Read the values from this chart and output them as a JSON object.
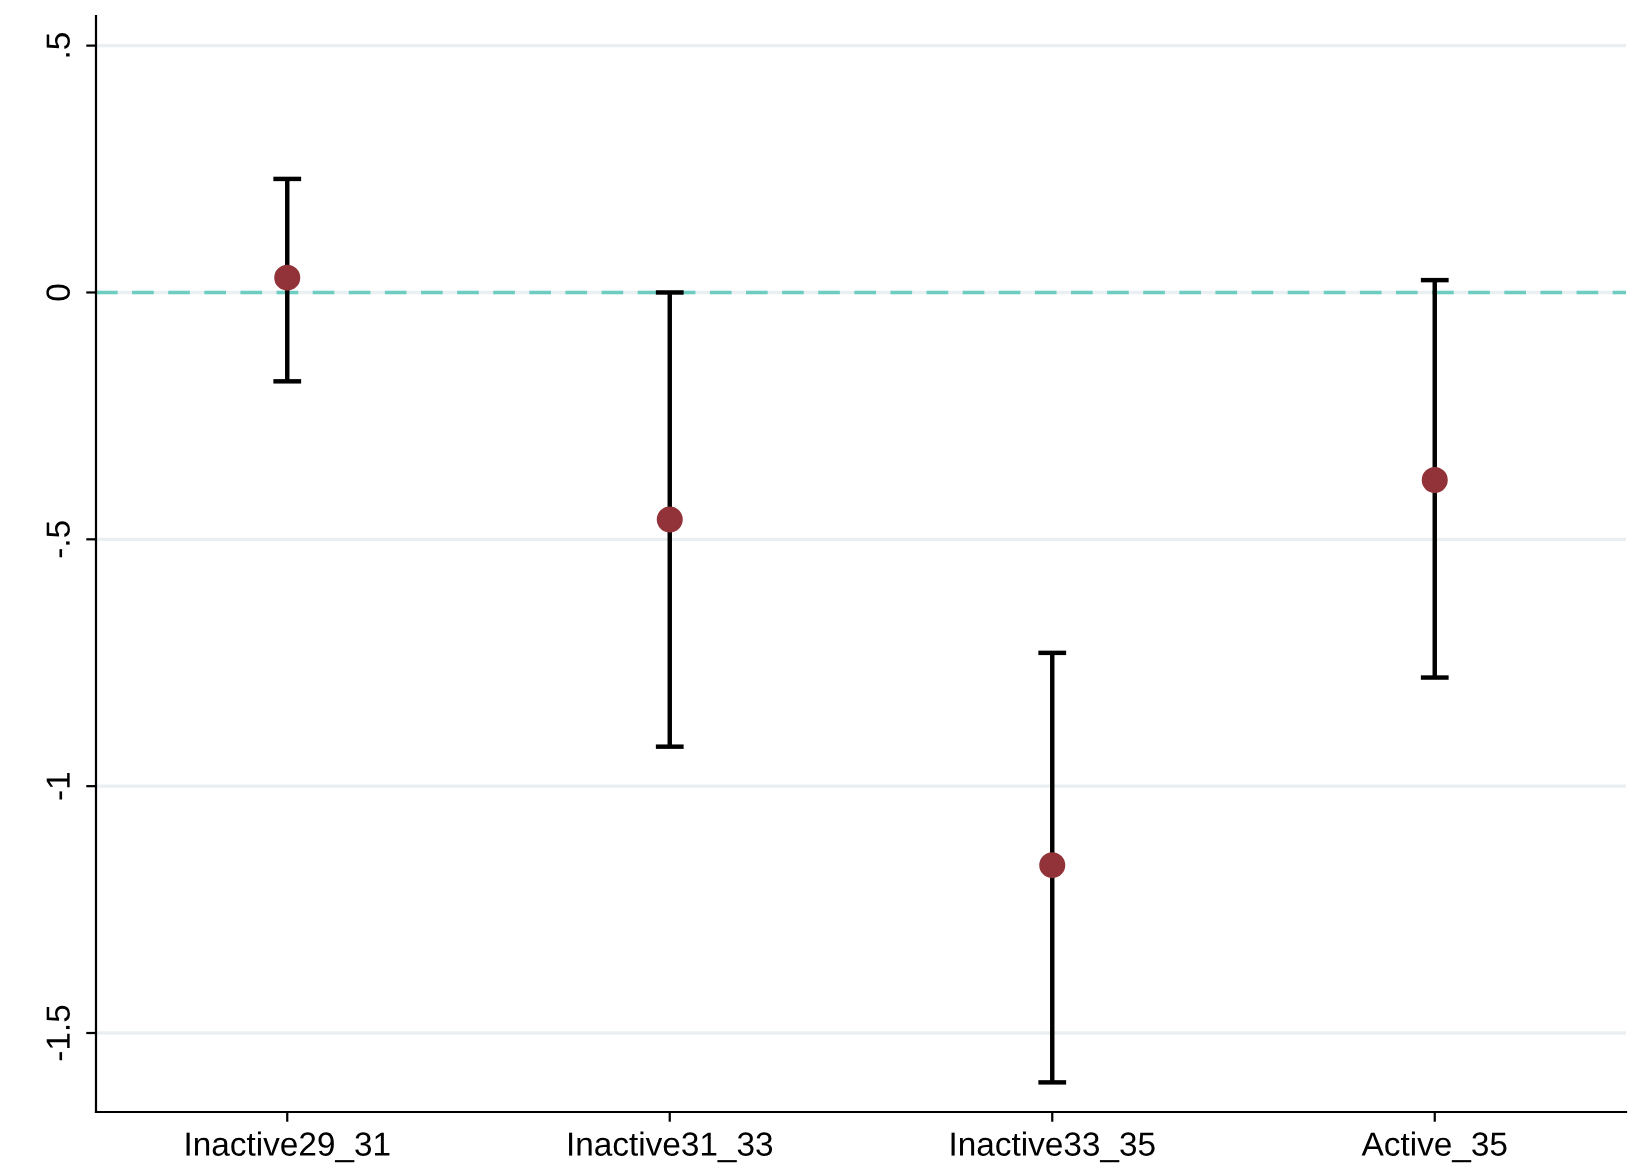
{
  "chart_data": {
    "type": "scatter",
    "categories": [
      "Inactive29_31",
      "Inactive31_33",
      "Inactive33_35",
      "Active_35"
    ],
    "values": [
      0.03,
      -0.46,
      -1.16,
      -0.38
    ],
    "errors": [
      [
        -0.18,
        0.23
      ],
      [
        -0.92,
        0.0
      ],
      [
        -1.6,
        -0.73
      ],
      [
        -0.78,
        0.025
      ]
    ],
    "color": "#923339",
    "marker": "circle",
    "ylim": [
      -1.66,
      0.56
    ],
    "yticks": [
      {
        "value": -1.5,
        "label": "-1.5"
      },
      {
        "value": -1,
        "label": "-1"
      },
      {
        "value": -0.5,
        "label": "-.5"
      },
      {
        "value": 0,
        "label": "0"
      },
      {
        "value": 0.5,
        "label": ".5"
      }
    ],
    "grid": "y",
    "ref_lines": [
      {
        "axis": "y",
        "value": 0,
        "label": null,
        "color": "#6ccdc0",
        "line_style": "dashed"
      }
    ]
  }
}
